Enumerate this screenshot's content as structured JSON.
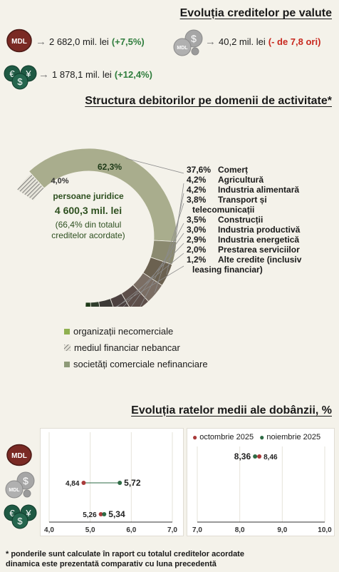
{
  "currency_section": {
    "title": "Evoluția creditelor pe valute",
    "items": [
      {
        "currency": "MDL",
        "amount": "2 682,0 mil. lei",
        "change": "(+7,5%)",
        "change_color": "#2f7d3d"
      },
      {
        "currency": "foreign-currency",
        "amount": "40,2 mil. lei",
        "change": "(- de 7,8 ori)",
        "change_color": "#c8281e"
      },
      {
        "currency": "EUR-USD",
        "amount": "1 878,1 mil. lei",
        "change": "(+12,4%)",
        "change_color": "#2f7d3d"
      }
    ]
  },
  "structure_section": {
    "title": "Structura debitorilor pe domenii de activitate*",
    "inner_pct_main": "62,3%",
    "inner_pct_small": "4,0%",
    "center_label": "persoane juridice",
    "center_amount": "4 600,3 mil. lei",
    "center_share": "(66,4% din totalul creditelor acordate)",
    "center_share_line1": "(66,4% din totalul",
    "center_share_line2": "creditelor acordate)"
  },
  "chart_data": [
    {
      "type": "pie",
      "title": "Structura debitorilor pe domenii de activitate*",
      "inner_ring": [
        {
          "label": "organizații necomerciale",
          "value": 0.1,
          "color": "#8fb050"
        },
        {
          "label": "mediul financiar nebancar",
          "value": 4.0,
          "color": "#9aa08a"
        },
        {
          "label": "societăți comerciale nefinanciare",
          "value": 62.3,
          "color": "#8e9a78"
        }
      ],
      "outer_ring": [
        {
          "label": "Comerț",
          "value": 37.6,
          "pct": "37,6%",
          "color": "#a9ad8d"
        },
        {
          "label": "Agricultură",
          "value": 4.2,
          "pct": "4,2%",
          "color": "#8b8a70"
        },
        {
          "label": "Industria alimentară",
          "value": 4.2,
          "pct": "4,2%",
          "color": "#6b6150"
        },
        {
          "label": "Transport și telecomunicații",
          "value": 3.8,
          "pct": "3,8%",
          "color": "#7b6e64"
        },
        {
          "label": "Construcții",
          "value": 3.5,
          "pct": "3,5%",
          "color": "#5e4f4a"
        },
        {
          "label": "Industria productivă",
          "value": 3.0,
          "pct": "3,0%",
          "color": "#4c4140"
        },
        {
          "label": "Industria energetică",
          "value": 2.9,
          "pct": "2,9%",
          "color": "#3c3a36"
        },
        {
          "label": "Prestarea serviciilor",
          "value": 2.0,
          "pct": "2,0%",
          "color": "#2f3d2c"
        },
        {
          "label": "Alte credite (inclusiv leasing financiar)",
          "value": 1.2,
          "pct": "1,2%",
          "color": "#1e3a18"
        }
      ],
      "label_lines": [
        {
          "pct": "37,6%",
          "text": "Comerț"
        },
        {
          "pct": "4,2%",
          "text": "Agricultură"
        },
        {
          "pct": "4,2%",
          "text": "Industria alimentară"
        },
        {
          "pct": "3,8%",
          "text": "Transport și"
        },
        {
          "pct": "",
          "text": "telecomunicații"
        },
        {
          "pct": "3,5%",
          "text": "Construcții"
        },
        {
          "pct": "3,0%",
          "text": "Industria productivă"
        },
        {
          "pct": "2,9%",
          "text": "Industria energetică"
        },
        {
          "pct": "2,0%",
          "text": "Prestarea serviciilor"
        },
        {
          "pct": "1,2%",
          "text": "Alte credite (inclusiv"
        },
        {
          "pct": "",
          "text": "leasing financiar)"
        }
      ]
    },
    {
      "type": "scatter",
      "title": "Evoluția ratelor medii ale dobânzii, %",
      "legend": [
        "octombrie 2025",
        "noiembrie 2025"
      ],
      "series_colors": {
        "octombrie 2025": "#a93a3a",
        "noiembrie 2025": "#2e6b45"
      },
      "panels": [
        {
          "xlim": [
            4.0,
            7.0
          ],
          "xticks": [
            "4,0",
            "5,0",
            "6,0",
            "7,0"
          ],
          "rows": [
            {
              "category": "foreign-currency",
              "oct": 4.84,
              "nov": 5.72,
              "oct_label": "4,84",
              "nov_label": "5,72"
            },
            {
              "category": "EUR-USD",
              "oct": 5.26,
              "nov": 5.34,
              "oct_label": "5,26",
              "nov_label": "5,34"
            }
          ]
        },
        {
          "xlim": [
            7.0,
            10.0
          ],
          "xticks": [
            "7,0",
            "8,0",
            "9,0",
            "10,0"
          ],
          "rows": [
            {
              "category": "MDL",
              "oct": 8.46,
              "nov": 8.36,
              "oct_label": "8,46",
              "nov_label": "8,36"
            }
          ]
        }
      ]
    }
  ],
  "legend": {
    "items": [
      {
        "label": "organizații necomerciale",
        "color": "#8fb050",
        "pattern": "solid"
      },
      {
        "label": "mediul financiar nebancar",
        "color": "#8a8a8a",
        "pattern": "hatched"
      },
      {
        "label": "societăți comerciale nefinanciare",
        "color": "#8e9a78",
        "pattern": "solid"
      }
    ]
  },
  "rates_section": {
    "title": "Evoluția ratelor medii ale dobânzii, %",
    "legend_oct": "octombrie 2025",
    "legend_nov": "noiembrie 2025",
    "currency_badges": [
      "MDL",
      "foreign-currency",
      "EUR-USD"
    ]
  },
  "footnotes": {
    "line1": "* ponderile sunt calculate în raport cu totalul creditelor acordate",
    "line2": "dinamica este prezentată comparativ cu luna precedentă"
  },
  "icons": {
    "mdl_badge": "MDL",
    "mdl_badge_color": "#7a2a24",
    "coin_color": "#a6a6a6",
    "euro_dollar_color": "#1f5a44"
  }
}
